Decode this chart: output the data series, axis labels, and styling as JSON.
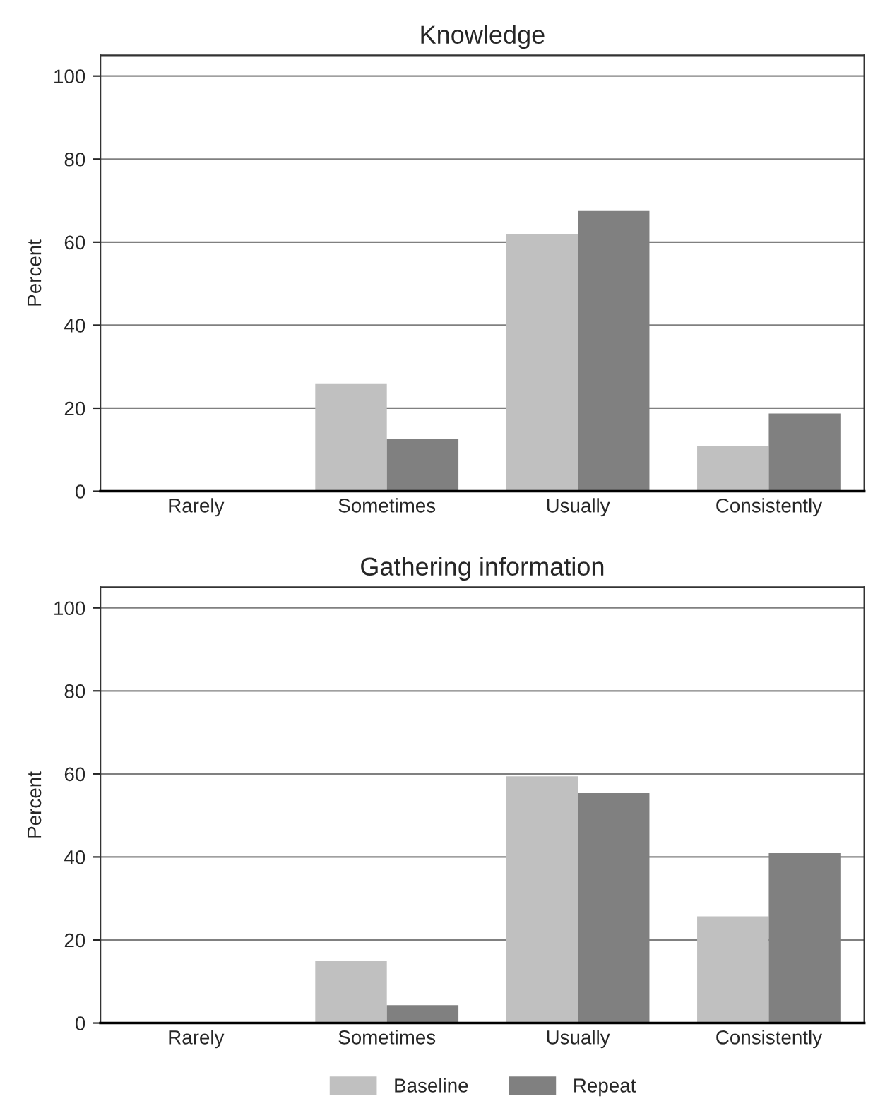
{
  "chart_data": [
    {
      "type": "bar",
      "title": "Knowledge",
      "ylabel": "Percent",
      "categories": [
        "Rarely",
        "Sometimes",
        "Usually",
        "Consistently"
      ],
      "series": [
        {
          "color": "#c0c0c0",
          "values": [
            null,
            25.8,
            62.0,
            10.8
          ]
        },
        {
          "color": "#808080",
          "values": [
            null,
            12.5,
            67.5,
            18.7
          ]
        }
      ],
      "ylim": [
        0,
        105
      ],
      "yticks": [
        0,
        20,
        40,
        60,
        80,
        100
      ],
      "grid": "y"
    },
    {
      "type": "bar",
      "title": "Gathering information",
      "ylabel": "Percent",
      "categories": [
        "Rarely",
        "Sometimes",
        "Usually",
        "Consistently"
      ],
      "series": [
        {
          "name": "Baseline",
          "color": "#c0c0c0",
          "values": [
            0,
            14.9,
            59.4,
            25.7
          ]
        },
        {
          "name": "Repeat",
          "color": "#808080",
          "values": [
            0,
            4.3,
            55.4,
            40.9
          ]
        }
      ],
      "ylim": [
        0,
        105
      ],
      "yticks": [
        0,
        20,
        40,
        60,
        80,
        100
      ],
      "grid": "y",
      "legend": "bottom"
    }
  ]
}
